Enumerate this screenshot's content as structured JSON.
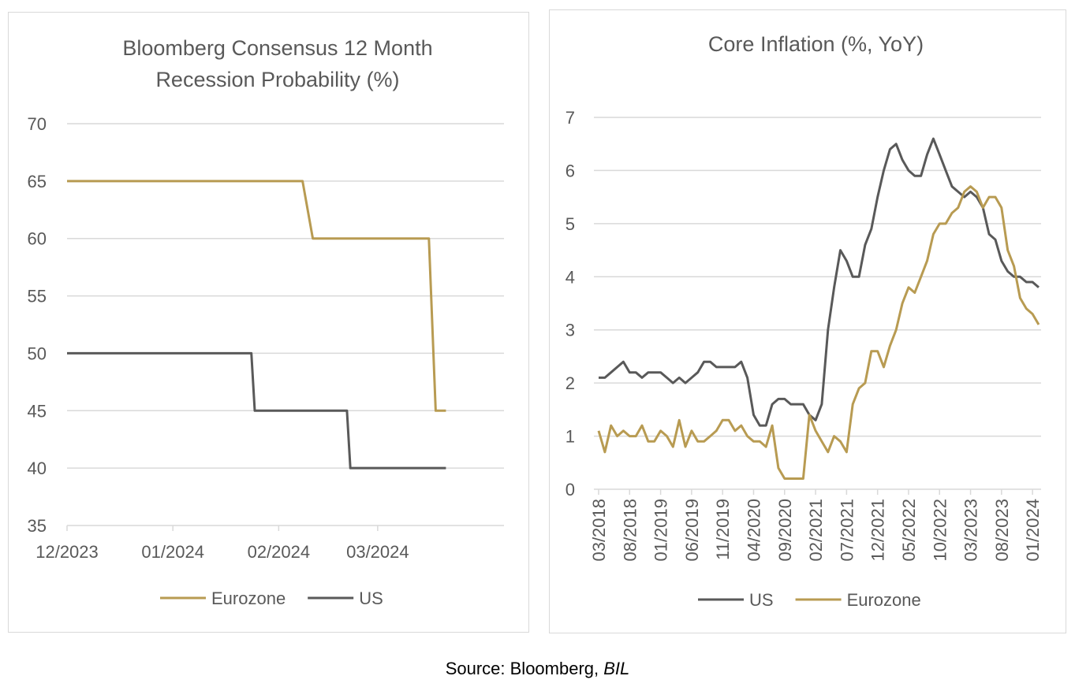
{
  "source": {
    "prefix": "Source: Bloomberg, ",
    "emph": "BIL"
  },
  "chart_data": [
    {
      "type": "line",
      "title": "Bloomberg Consensus 12 Month Recession Probability (%)",
      "title_lines": [
        "Bloomberg Consensus 12 Month",
        "Recession Probability (%)"
      ],
      "xlabel": "",
      "ylabel": "",
      "ylim": [
        35,
        70
      ],
      "yticks": [
        35,
        40,
        45,
        50,
        55,
        60,
        65,
        70
      ],
      "xlim": [
        "2023-12-01",
        "2024-04-07"
      ],
      "xticks": [
        {
          "date": "2023-12-01",
          "label": "12/2023"
        },
        {
          "date": "2024-01-01",
          "label": "01/2024"
        },
        {
          "date": "2024-02-01",
          "label": "02/2024"
        },
        {
          "date": "2024-03-01",
          "label": "03/2024"
        }
      ],
      "grid": true,
      "legend_position": "bottom",
      "legend": [
        "Eurozone",
        "US"
      ],
      "series": [
        {
          "name": "Eurozone",
          "color": "#b89b52",
          "points": [
            [
              "2023-12-01",
              65
            ],
            [
              "2024-02-08",
              65
            ],
            [
              "2024-02-11",
              60
            ],
            [
              "2024-03-16",
              60
            ],
            [
              "2024-03-18",
              45
            ],
            [
              "2024-03-21",
              45
            ]
          ]
        },
        {
          "name": "US",
          "color": "#595959",
          "points": [
            [
              "2023-12-01",
              50
            ],
            [
              "2024-01-24",
              50
            ],
            [
              "2024-01-25",
              45
            ],
            [
              "2024-02-21",
              45
            ],
            [
              "2024-02-22",
              40
            ],
            [
              "2024-03-21",
              40
            ]
          ]
        }
      ]
    },
    {
      "type": "line",
      "title": "Core Inflation (%, YoY)",
      "xlabel": "",
      "ylabel": "",
      "ylim": [
        0,
        7
      ],
      "yticks": [
        0,
        1,
        2,
        3,
        4,
        5,
        6,
        7
      ],
      "x_start": "03/2018",
      "xticks": [
        "03/2018",
        "08/2018",
        "01/2019",
        "06/2019",
        "11/2019",
        "04/2020",
        "09/2020",
        "02/2021",
        "07/2021",
        "12/2021",
        "05/2022",
        "10/2022",
        "03/2023",
        "08/2023",
        "01/2024"
      ],
      "grid": true,
      "legend_position": "bottom",
      "legend": [
        "US",
        "Eurozone"
      ],
      "series": [
        {
          "name": "US",
          "color": "#595959",
          "values": [
            2.1,
            2.1,
            2.2,
            2.3,
            2.4,
            2.2,
            2.2,
            2.1,
            2.2,
            2.2,
            2.2,
            2.1,
            2.0,
            2.1,
            2.0,
            2.1,
            2.2,
            2.4,
            2.4,
            2.3,
            2.3,
            2.3,
            2.3,
            2.4,
            2.1,
            1.4,
            1.2,
            1.2,
            1.6,
            1.7,
            1.7,
            1.6,
            1.6,
            1.6,
            1.4,
            1.3,
            1.6,
            3.0,
            3.8,
            4.5,
            4.3,
            4.0,
            4.0,
            4.6,
            4.9,
            5.5,
            6.0,
            6.4,
            6.5,
            6.2,
            6.0,
            5.9,
            5.9,
            6.3,
            6.6,
            6.3,
            6.0,
            5.7,
            5.6,
            5.5,
            5.6,
            5.5,
            5.3,
            4.8,
            4.7,
            4.3,
            4.1,
            4.0,
            4.0,
            3.9,
            3.9,
            3.8
          ]
        },
        {
          "name": "Eurozone",
          "color": "#b89b52",
          "values": [
            1.1,
            0.7,
            1.2,
            1.0,
            1.1,
            1.0,
            1.0,
            1.2,
            0.9,
            0.9,
            1.1,
            1.0,
            0.8,
            1.3,
            0.8,
            1.1,
            0.9,
            0.9,
            1.0,
            1.1,
            1.3,
            1.3,
            1.1,
            1.2,
            1.0,
            0.9,
            0.9,
            0.8,
            1.2,
            0.4,
            0.2,
            0.2,
            0.2,
            0.2,
            1.4,
            1.1,
            0.9,
            0.7,
            1.0,
            0.9,
            0.7,
            1.6,
            1.9,
            2.0,
            2.6,
            2.6,
            2.3,
            2.7,
            3.0,
            3.5,
            3.8,
            3.7,
            4.0,
            4.3,
            4.8,
            5.0,
            5.0,
            5.2,
            5.3,
            5.6,
            5.7,
            5.6,
            5.3,
            5.5,
            5.5,
            5.3,
            4.5,
            4.2,
            3.6,
            3.4,
            3.3,
            3.1
          ]
        }
      ]
    }
  ]
}
